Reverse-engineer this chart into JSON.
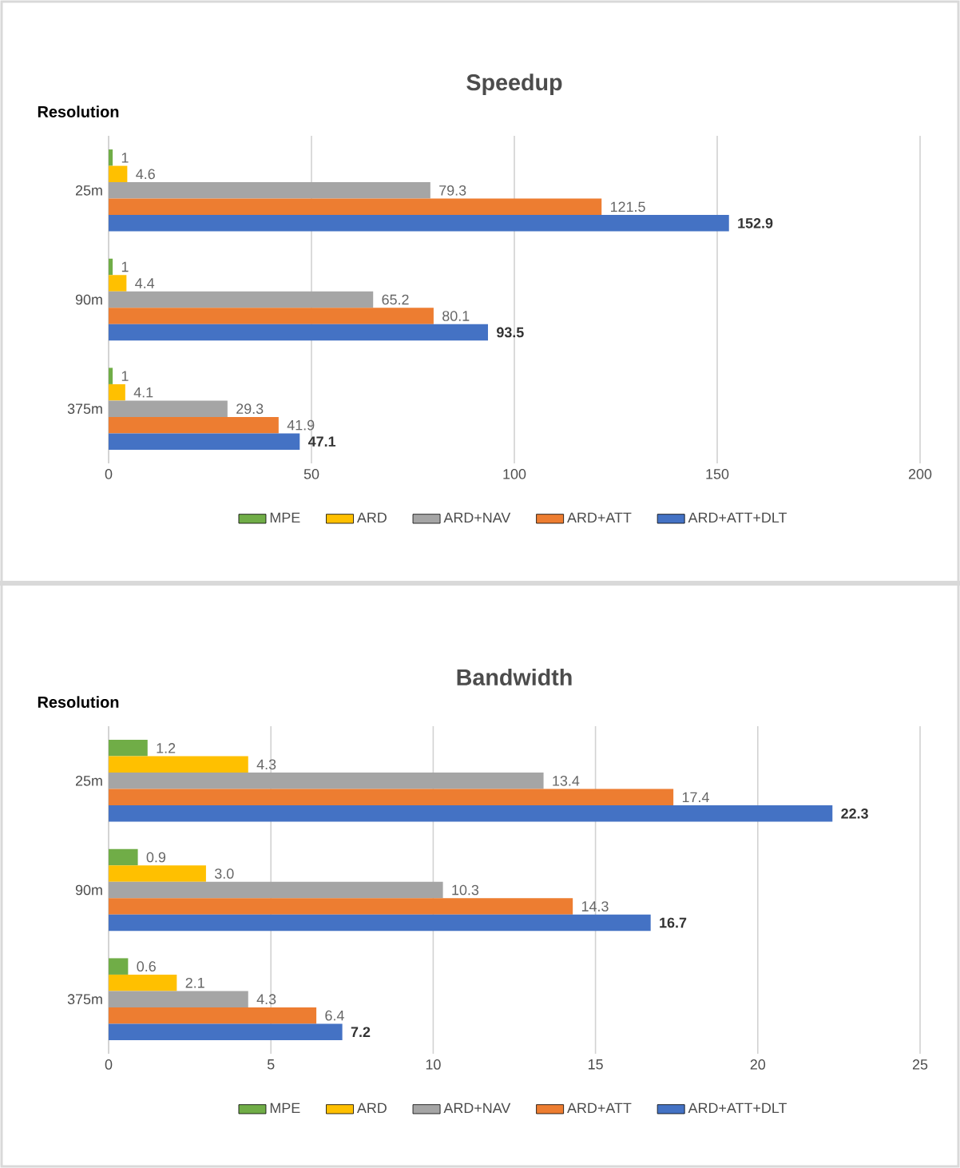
{
  "chart_data": [
    {
      "type": "bar",
      "orientation": "horizontal",
      "title": "Speedup",
      "ylabel": "Resolution",
      "categories": [
        "25m",
        "90m",
        "375m"
      ],
      "xlim": [
        0,
        200
      ],
      "xticks": [
        0,
        50,
        100,
        150,
        200
      ],
      "grid": "x",
      "legend": "bottom",
      "series": [
        {
          "name": "MPE",
          "color": "#70ad47",
          "values": [
            1,
            1,
            1
          ],
          "value_labels": [
            "1",
            "1",
            "1"
          ]
        },
        {
          "name": "ARD",
          "color": "#ffc000",
          "values": [
            4.6,
            4.4,
            4.1
          ],
          "value_labels": [
            "4.6",
            "4.4",
            "4.1"
          ]
        },
        {
          "name": "ARD+NAV",
          "color": "#a5a5a5",
          "values": [
            79.3,
            65.2,
            29.3
          ],
          "value_labels": [
            "79.3",
            "65.2",
            "29.3"
          ]
        },
        {
          "name": "ARD+ATT",
          "color": "#ed7d31",
          "values": [
            121.5,
            80.1,
            41.9
          ],
          "value_labels": [
            "121.5",
            "80.1",
            "41.9"
          ]
        },
        {
          "name": "ARD+ATT+DLT",
          "color": "#4472c4",
          "values": [
            152.9,
            93.5,
            47.1
          ],
          "value_labels": [
            "152.9",
            "93.5",
            "47.1"
          ]
        }
      ]
    },
    {
      "type": "bar",
      "orientation": "horizontal",
      "title": "Bandwidth",
      "ylabel": "Resolution",
      "categories": [
        "25m",
        "90m",
        "375m"
      ],
      "xlim": [
        0,
        25
      ],
      "xticks": [
        0,
        5,
        10,
        15,
        20,
        25
      ],
      "grid": "x",
      "legend": "bottom",
      "series": [
        {
          "name": "MPE",
          "color": "#70ad47",
          "values": [
            1.2,
            0.9,
            0.6
          ],
          "value_labels": [
            "1.2",
            "0.9",
            "0.6"
          ]
        },
        {
          "name": "ARD",
          "color": "#ffc000",
          "values": [
            4.3,
            3.0,
            2.1
          ],
          "value_labels": [
            "4.3",
            "3.0",
            "2.1"
          ]
        },
        {
          "name": "ARD+NAV",
          "color": "#a5a5a5",
          "values": [
            13.4,
            10.3,
            4.3
          ],
          "value_labels": [
            "13.4",
            "10.3",
            "4.3"
          ]
        },
        {
          "name": "ARD+ATT",
          "color": "#ed7d31",
          "values": [
            17.4,
            14.3,
            6.4
          ],
          "value_labels": [
            "17.4",
            "14.3",
            "6.4"
          ]
        },
        {
          "name": "ARD+ATT+DLT",
          "color": "#4472c4",
          "values": [
            22.3,
            16.7,
            7.2
          ],
          "value_labels": [
            "22.3",
            "16.7",
            "7.2"
          ]
        }
      ]
    }
  ]
}
